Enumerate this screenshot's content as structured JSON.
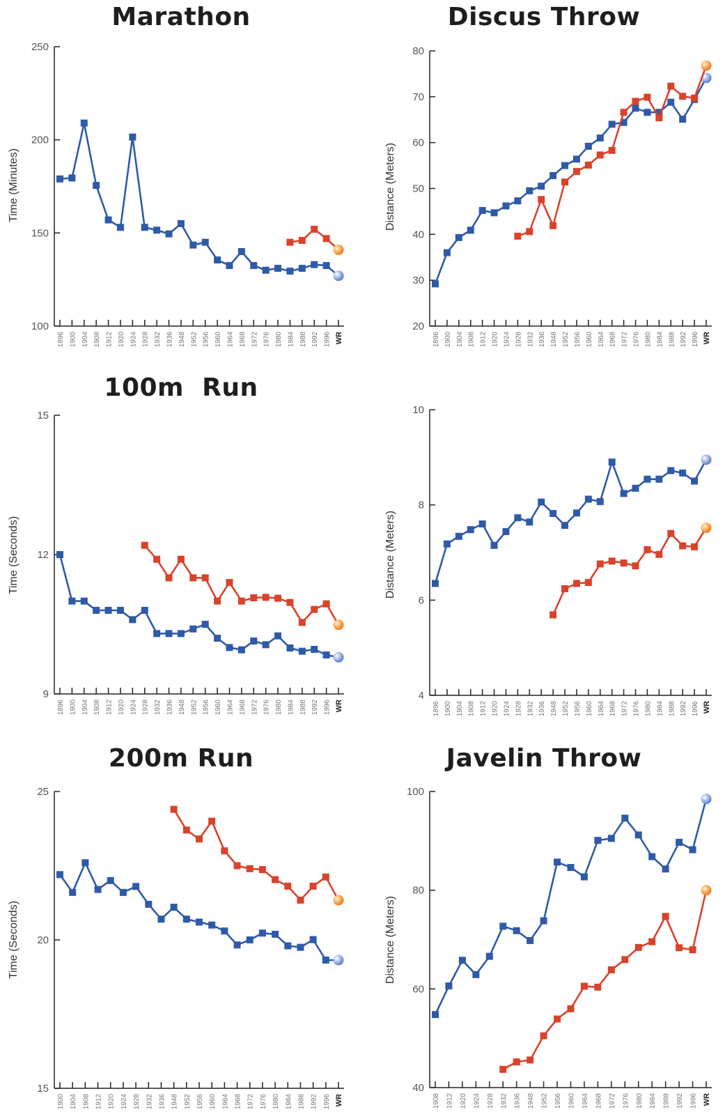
{
  "colors": {
    "men": "#2e5aa8",
    "women": "#d9432a",
    "axis": "#222222",
    "tick_label": "#555555"
  },
  "chart_data": [
    {
      "type": "line",
      "title": "Marathon",
      "ylabel": "Time (Minutes)",
      "ylim": [
        100,
        250
      ],
      "yticks": [
        100,
        150,
        200,
        250
      ],
      "categories": [
        "1896",
        "1900",
        "1904",
        "1908",
        "1912",
        "1920",
        "1924",
        "1928",
        "1932",
        "1936",
        "1948",
        "1952",
        "1956",
        "1960",
        "1964",
        "1968",
        "1972",
        "1976",
        "1980",
        "1984",
        "1988",
        "1992",
        "1996",
        "WR"
      ],
      "series": [
        {
          "values": [
            179,
            179.5,
            209,
            175.5,
            157,
            153,
            201.5,
            153,
            151.5,
            149.5,
            155,
            143.5,
            145,
            135.5,
            132.5,
            140,
            132.5,
            130,
            131,
            129.5,
            131,
            133,
            132.5,
            127
          ]
        },
        {
          "values": [
            null,
            null,
            null,
            null,
            null,
            null,
            null,
            null,
            null,
            null,
            null,
            null,
            null,
            null,
            null,
            null,
            null,
            null,
            null,
            145,
            146,
            152,
            147,
            141
          ]
        }
      ]
    },
    {
      "type": "line",
      "title": "Discus Throw",
      "ylabel": "Distance (Meters)",
      "ylim": [
        20,
        80
      ],
      "yticks": [
        20,
        30,
        40,
        50,
        60,
        70,
        80
      ],
      "categories": [
        "1896",
        "1900",
        "1904",
        "1908",
        "1912",
        "1920",
        "1924",
        "1928",
        "1932",
        "1936",
        "1948",
        "1952",
        "1956",
        "1960",
        "1964",
        "1968",
        "1972",
        "1976",
        "1980",
        "1984",
        "1988",
        "1992",
        "1996",
        "WR"
      ],
      "series": [
        {
          "values": [
            29.2,
            36,
            39.3,
            40.9,
            45.2,
            44.7,
            46.2,
            47.3,
            49.5,
            50.5,
            52.8,
            55.0,
            56.4,
            59.2,
            61.0,
            64.0,
            64.4,
            67.5,
            66.6,
            66.6,
            68.8,
            65.1,
            69.4,
            74.1
          ]
        },
        {
          "values": [
            null,
            null,
            null,
            null,
            null,
            null,
            null,
            39.6,
            40.6,
            47.6,
            41.9,
            51.4,
            53.7,
            55.1,
            57.3,
            58.3,
            66.6,
            69.0,
            69.9,
            65.4,
            72.3,
            70.1,
            69.7,
            76.8
          ]
        }
      ]
    },
    {
      "type": "line",
      "title": "100m  Run",
      "ylabel": "Time (Seconds)",
      "ylim": [
        9,
        15
      ],
      "yticks": [
        9,
        12,
        15
      ],
      "categories": [
        "1896",
        "1900",
        "1904",
        "1908",
        "1912",
        "1920",
        "1924",
        "1928",
        "1932",
        "1936",
        "1948",
        "1952",
        "1956",
        "1960",
        "1964",
        "1968",
        "1972",
        "1976",
        "1980",
        "1984",
        "1988",
        "1992",
        "1996",
        "WR"
      ],
      "series": [
        {
          "values": [
            12.0,
            11.0,
            11.0,
            10.8,
            10.8,
            10.8,
            10.6,
            10.8,
            10.3,
            10.3,
            10.3,
            10.4,
            10.5,
            10.2,
            10.0,
            9.95,
            10.14,
            10.06,
            10.25,
            9.99,
            9.92,
            9.96,
            9.84,
            9.79
          ]
        },
        {
          "values": [
            null,
            null,
            null,
            null,
            null,
            null,
            null,
            12.2,
            11.9,
            11.5,
            11.9,
            11.5,
            11.5,
            11.0,
            11.4,
            11.0,
            11.07,
            11.08,
            11.06,
            10.97,
            10.54,
            10.82,
            10.94,
            10.49
          ]
        }
      ]
    },
    {
      "type": "line",
      "title": "",
      "ylabel": "Distance (Meters)",
      "ylim": [
        4,
        10
      ],
      "yticks": [
        4,
        6,
        8,
        10
      ],
      "categories": [
        "1896",
        "1900",
        "1904",
        "1908",
        "1912",
        "1920",
        "1924",
        "1928",
        "1932",
        "1936",
        "1948",
        "1952",
        "1956",
        "1960",
        "1964",
        "1968",
        "1972",
        "1976",
        "1980",
        "1984",
        "1988",
        "1992",
        "1996",
        "WR"
      ],
      "series": [
        {
          "values": [
            6.35,
            7.18,
            7.34,
            7.48,
            7.6,
            7.15,
            7.44,
            7.73,
            7.64,
            8.06,
            7.82,
            7.57,
            7.83,
            8.12,
            8.07,
            8.9,
            8.24,
            8.35,
            8.54,
            8.54,
            8.72,
            8.67,
            8.5,
            8.95
          ]
        },
        {
          "values": [
            null,
            null,
            null,
            null,
            null,
            null,
            null,
            null,
            null,
            null,
            5.69,
            6.24,
            6.35,
            6.37,
            6.76,
            6.82,
            6.78,
            6.72,
            7.06,
            6.96,
            7.4,
            7.14,
            7.12,
            7.52
          ]
        }
      ]
    },
    {
      "type": "line",
      "title": "200m Run",
      "ylabel": "Time (Seconds)",
      "ylim": [
        15,
        25
      ],
      "yticks": [
        15,
        20,
        25
      ],
      "categories": [
        "1900",
        "1904",
        "1908",
        "1912",
        "1920",
        "1924",
        "1928",
        "1932",
        "1936",
        "1948",
        "1952",
        "1956",
        "1960",
        "1964",
        "1968",
        "1972",
        "1976",
        "1980",
        "1984",
        "1988",
        "1992",
        "1996",
        "WR"
      ],
      "series": [
        {
          "values": [
            22.2,
            21.6,
            22.6,
            21.7,
            22.0,
            21.6,
            21.8,
            21.2,
            20.7,
            21.1,
            20.7,
            20.6,
            20.5,
            20.3,
            19.83,
            20.0,
            20.23,
            20.19,
            19.8,
            19.75,
            20.01,
            19.32,
            19.32
          ]
        },
        {
          "values": [
            null,
            null,
            null,
            null,
            null,
            null,
            null,
            null,
            null,
            24.4,
            23.7,
            23.4,
            24.0,
            23.0,
            22.5,
            22.4,
            22.37,
            22.03,
            21.81,
            21.34,
            21.81,
            22.12,
            21.34
          ]
        }
      ]
    },
    {
      "type": "line",
      "title": "Javelin Throw",
      "ylabel": "Distance (Meters)",
      "ylim": [
        40,
        100
      ],
      "yticks": [
        40,
        60,
        80,
        100
      ],
      "categories": [
        "1908",
        "1912",
        "1920",
        "1924",
        "1928",
        "1932",
        "1936",
        "1948",
        "1952",
        "1956",
        "1960",
        "1964",
        "1968",
        "1972",
        "1976",
        "1980",
        "1984",
        "1988",
        "1992",
        "1996",
        "WR"
      ],
      "series": [
        {
          "values": [
            54.8,
            60.6,
            65.8,
            62.9,
            66.6,
            72.7,
            71.8,
            69.8,
            73.8,
            85.7,
            84.6,
            82.7,
            90.1,
            90.5,
            94.6,
            91.2,
            86.8,
            84.3,
            89.7,
            88.2,
            98.5
          ]
        },
        {
          "values": [
            null,
            null,
            null,
            null,
            null,
            43.7,
            45.2,
            45.6,
            50.5,
            53.9,
            55.98,
            60.54,
            60.36,
            63.88,
            65.94,
            68.4,
            69.56,
            74.68,
            68.34,
            67.94,
            80.0
          ]
        }
      ]
    }
  ]
}
